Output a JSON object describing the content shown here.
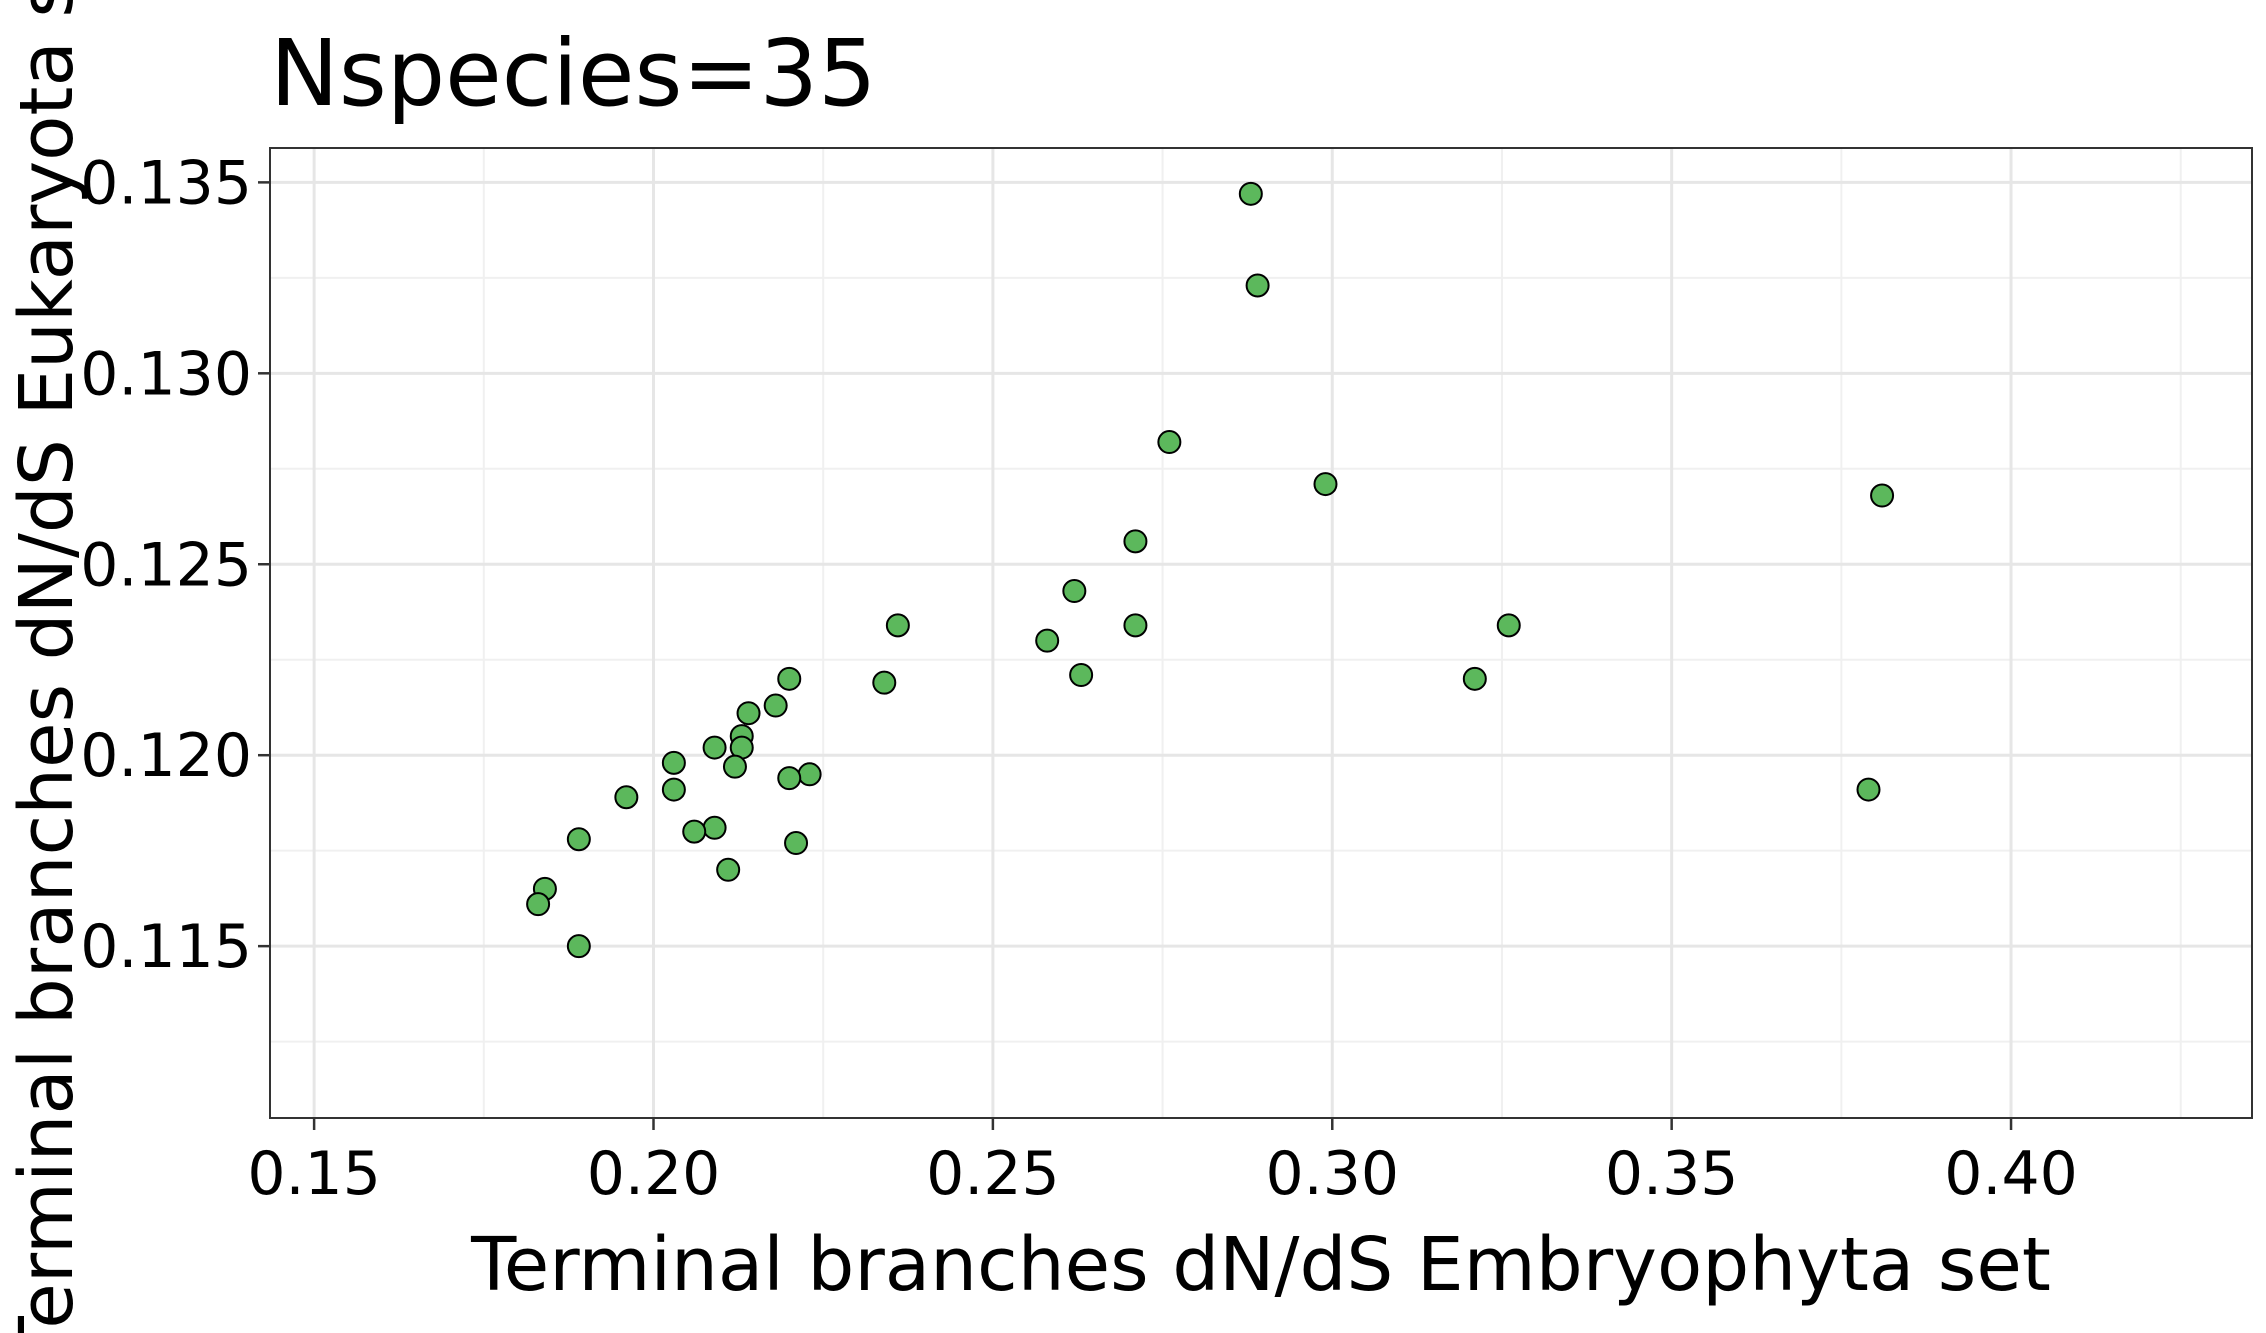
{
  "chart_data": {
    "type": "scatter",
    "title": "Nspecies=35",
    "xlabel": "Terminal branches dN/dS Embryophyta set",
    "ylabel": "Terminal branches dN/dS Eukaryota set",
    "xlim": [
      0.1435,
      0.4355
    ],
    "ylim": [
      0.1105,
      0.1359
    ],
    "x_ticks": [
      0.15,
      0.2,
      0.25,
      0.3,
      0.35,
      0.4
    ],
    "x_tick_labels": [
      "0.15",
      "0.20",
      "0.25",
      "0.30",
      "0.35",
      "0.40"
    ],
    "y_ticks": [
      0.115,
      0.12,
      0.125,
      0.13,
      0.135
    ],
    "y_tick_labels": [
      "0.115",
      "0.120",
      "0.125",
      "0.130",
      "0.135"
    ],
    "grid": true,
    "point_color": "#5cb85c",
    "point_edge_color": "#000000",
    "points": [
      {
        "x": 0.288,
        "y": 0.1347
      },
      {
        "x": 0.289,
        "y": 0.1323
      },
      {
        "x": 0.276,
        "y": 0.1282
      },
      {
        "x": 0.299,
        "y": 0.1271
      },
      {
        "x": 0.381,
        "y": 0.1268
      },
      {
        "x": 0.271,
        "y": 0.1256
      },
      {
        "x": 0.262,
        "y": 0.1243
      },
      {
        "x": 0.236,
        "y": 0.1234
      },
      {
        "x": 0.271,
        "y": 0.1234
      },
      {
        "x": 0.326,
        "y": 0.1234
      },
      {
        "x": 0.258,
        "y": 0.123
      },
      {
        "x": 0.263,
        "y": 0.1221
      },
      {
        "x": 0.22,
        "y": 0.122
      },
      {
        "x": 0.321,
        "y": 0.122
      },
      {
        "x": 0.234,
        "y": 0.1219
      },
      {
        "x": 0.218,
        "y": 0.1213
      },
      {
        "x": 0.214,
        "y": 0.1211
      },
      {
        "x": 0.213,
        "y": 0.1205
      },
      {
        "x": 0.209,
        "y": 0.1202
      },
      {
        "x": 0.213,
        "y": 0.1202
      },
      {
        "x": 0.203,
        "y": 0.1198
      },
      {
        "x": 0.212,
        "y": 0.1197
      },
      {
        "x": 0.223,
        "y": 0.1195
      },
      {
        "x": 0.22,
        "y": 0.1194
      },
      {
        "x": 0.203,
        "y": 0.1191
      },
      {
        "x": 0.379,
        "y": 0.1191
      },
      {
        "x": 0.196,
        "y": 0.1189
      },
      {
        "x": 0.209,
        "y": 0.1181
      },
      {
        "x": 0.206,
        "y": 0.118
      },
      {
        "x": 0.189,
        "y": 0.1178
      },
      {
        "x": 0.221,
        "y": 0.1177
      },
      {
        "x": 0.211,
        "y": 0.117
      },
      {
        "x": 0.184,
        "y": 0.1165
      },
      {
        "x": 0.183,
        "y": 0.1161
      },
      {
        "x": 0.189,
        "y": 0.115
      }
    ]
  }
}
